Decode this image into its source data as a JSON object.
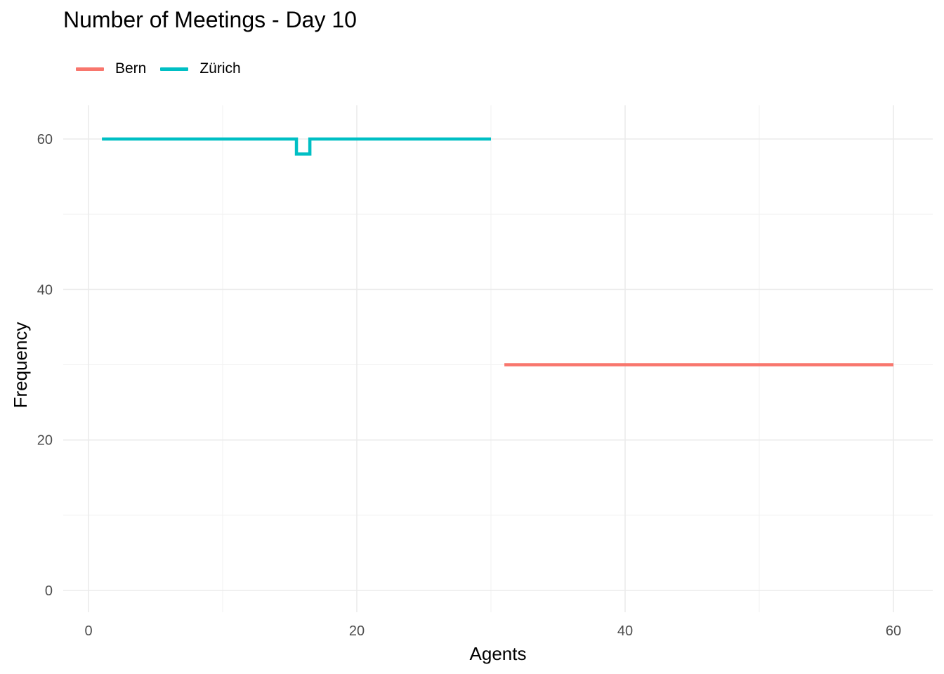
{
  "chart_data": {
    "type": "line",
    "title": "Number of Meetings - Day 10",
    "xlabel": "Agents",
    "ylabel": "Frequency",
    "xlim": [
      0,
      60
    ],
    "ylim": [
      0,
      60
    ],
    "x_ticks": [
      0,
      20,
      40,
      60
    ],
    "y_ticks": [
      0,
      20,
      40,
      60
    ],
    "grid": true,
    "legend_position": "top-left",
    "series": [
      {
        "name": "Bern",
        "color": "#F8766D",
        "x": [
          31,
          32,
          33,
          34,
          35,
          36,
          37,
          38,
          39,
          40,
          41,
          42,
          43,
          44,
          45,
          46,
          47,
          48,
          49,
          50,
          51,
          52,
          53,
          54,
          55,
          56,
          57,
          58,
          59,
          60
        ],
        "y": [
          30,
          30,
          30,
          30,
          30,
          30,
          30,
          30,
          30,
          30,
          30,
          30,
          30,
          30,
          30,
          30,
          30,
          30,
          30,
          30,
          30,
          30,
          30,
          30,
          30,
          30,
          30,
          30,
          30,
          30
        ]
      },
      {
        "name": "Zürich",
        "color": "#00BFC4",
        "x": [
          1,
          2,
          3,
          4,
          5,
          6,
          7,
          8,
          9,
          10,
          11,
          12,
          13,
          14,
          15,
          16,
          17,
          18,
          19,
          20,
          21,
          22,
          23,
          24,
          25,
          26,
          27,
          28,
          29,
          30
        ],
        "y": [
          60,
          60,
          60,
          60,
          60,
          60,
          60,
          60,
          60,
          60,
          60,
          60,
          60,
          60,
          60,
          58,
          60,
          60,
          60,
          60,
          60,
          60,
          60,
          60,
          60,
          60,
          60,
          60,
          60,
          60
        ]
      }
    ]
  }
}
